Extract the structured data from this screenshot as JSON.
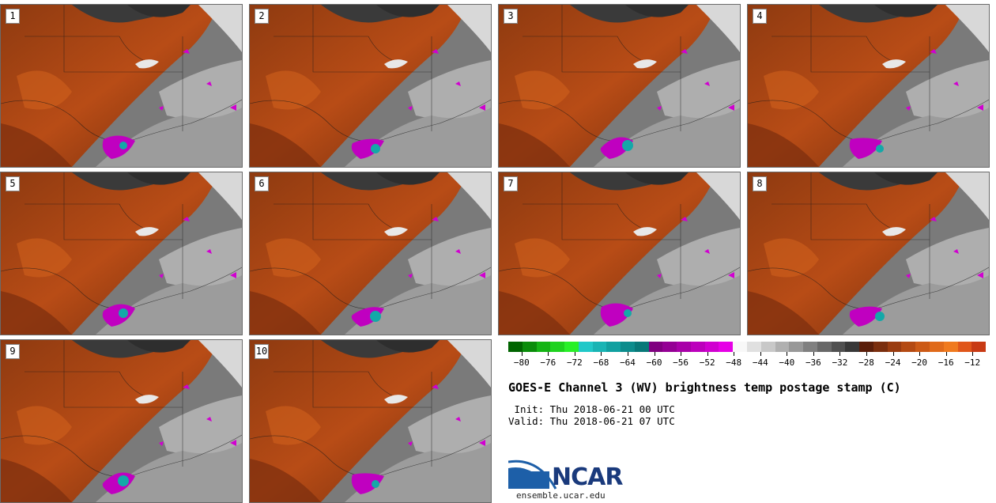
{
  "panels": [
    {
      "label": "1"
    },
    {
      "label": "2"
    },
    {
      "label": "3"
    },
    {
      "label": "4"
    },
    {
      "label": "5"
    },
    {
      "label": "6"
    },
    {
      "label": "7"
    },
    {
      "label": "8"
    },
    {
      "label": "9"
    },
    {
      "label": "10"
    }
  ],
  "colorbar": {
    "colors": [
      "#006400",
      "#0a8c0a",
      "#14b414",
      "#1ed21e",
      "#28f028",
      "#20c8c8",
      "#18b4b4",
      "#10a0a0",
      "#0c8c8c",
      "#087878",
      "#800080",
      "#940094",
      "#a800a8",
      "#bc00bc",
      "#d000d0",
      "#e600e6",
      "#f8f8f8",
      "#e0e0e0",
      "#c8c8c8",
      "#b0b0b0",
      "#989898",
      "#808080",
      "#686868",
      "#505050",
      "#383838",
      "#5a1e0a",
      "#7a2e0e",
      "#9a3c10",
      "#b44a12",
      "#cc5a16",
      "#e06a1a",
      "#f07a1e",
      "#e0561a",
      "#c83a14"
    ],
    "tick_values": [
      -80,
      -76,
      -72,
      -68,
      -64,
      -60,
      -56,
      -52,
      -48,
      -44,
      -40,
      -36,
      -32,
      -28,
      -24,
      -20,
      -16,
      -12
    ],
    "tick_labels": [
      "−80",
      "−76",
      "−72",
      "−68",
      "−64",
      "−60",
      "−56",
      "−52",
      "−48",
      "−44",
      "−40",
      "−36",
      "−32",
      "−28",
      "−24",
      "−20",
      "−16",
      "−12"
    ],
    "min": -82,
    "max": -10
  },
  "title": "GOES-E Channel 3 (WV) brightness temp postage stamp (C)",
  "init_line": " Init: Thu 2018-06-21 00 UTC",
  "valid_line": "Valid: Thu 2018-06-21 07 UTC",
  "logo_text": "NCAR",
  "website": "ensemble.ucar.edu"
}
